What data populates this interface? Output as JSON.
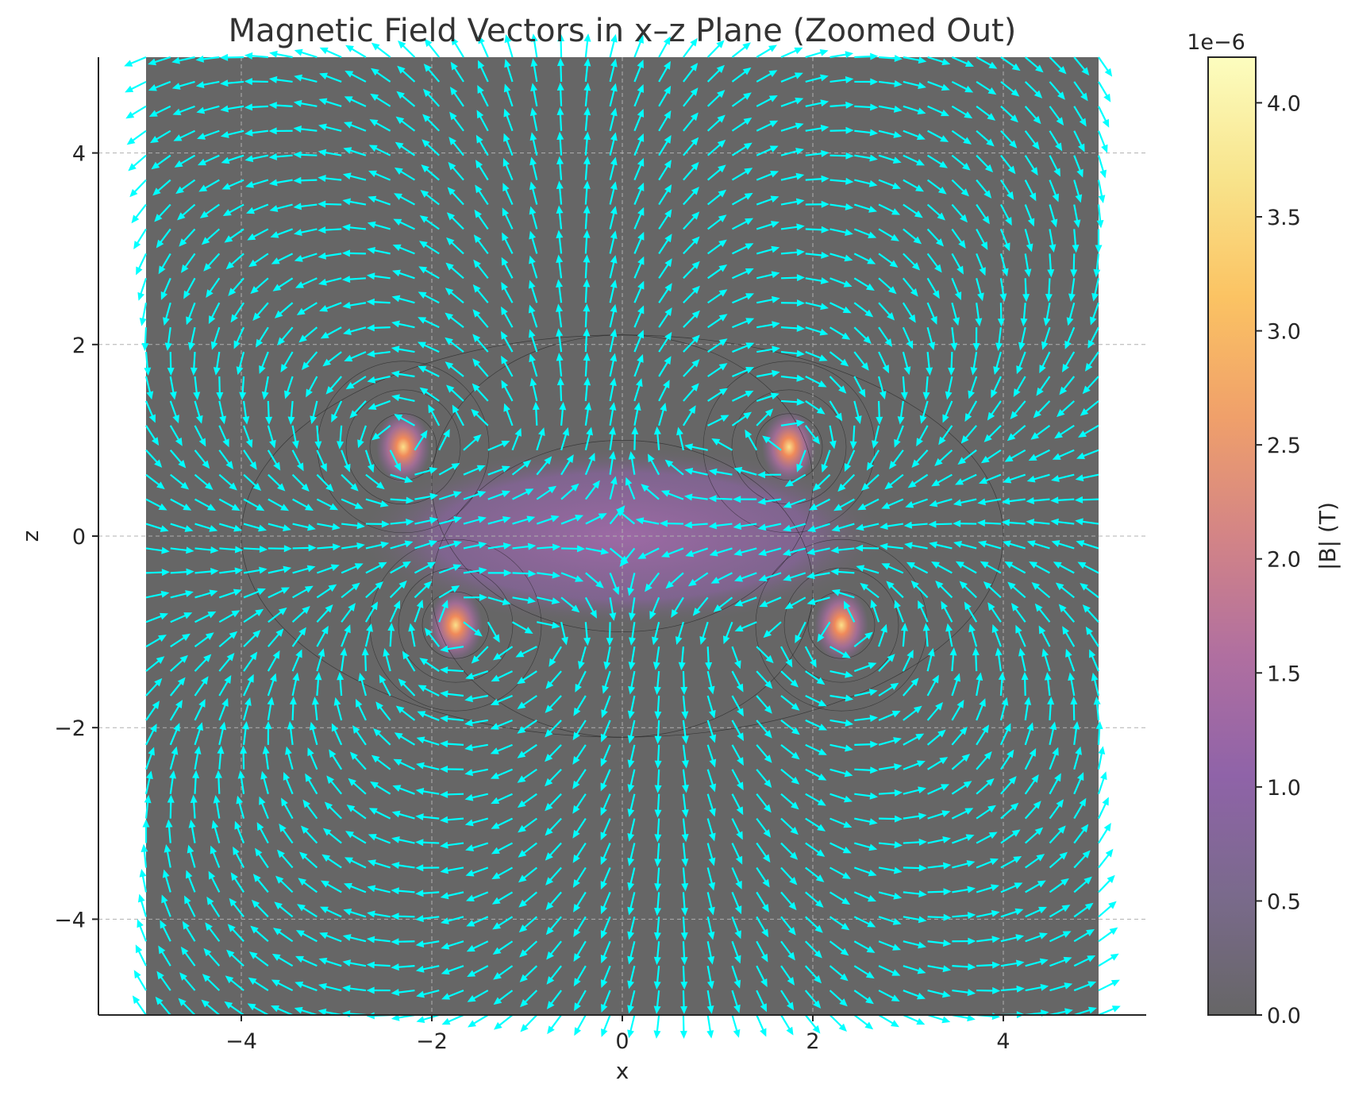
{
  "chart_data": {
    "type": "quiver",
    "title": "Magnetic Field Vectors in x–z Plane (Zoomed Out)",
    "xlabel": "x",
    "ylabel": "z",
    "xlim": [
      -5.5,
      5.5
    ],
    "ylim": [
      -5,
      5
    ],
    "x_ticks": [
      -4,
      -2,
      0,
      2,
      4
    ],
    "y_ticks": [
      -4,
      -2,
      0,
      2,
      4
    ],
    "x_tick_labels": [
      "−4",
      "−2",
      "0",
      "2",
      "4"
    ],
    "y_tick_labels": [
      "−4",
      "−2",
      "0",
      "2",
      "4"
    ],
    "grid": true,
    "field_domain": {
      "x": [
        -5,
        5
      ],
      "z": [
        -5,
        5
      ]
    },
    "vector_grid_points_per_axis": 40,
    "vector_color": "#00ffff",
    "background_color": "#666666",
    "colorbar": {
      "label": "|B| (T)",
      "scale_label": "1e−6",
      "range": [
        0,
        4.2
      ],
      "ticks": [
        0.0,
        0.5,
        1.0,
        1.5,
        2.0,
        2.5,
        3.0,
        3.5,
        4.0
      ],
      "tick_labels": [
        "0.0",
        "0.5",
        "1.0",
        "1.5",
        "2.0",
        "2.5",
        "3.0",
        "3.5",
        "4.0"
      ],
      "colors": [
        "#666666",
        "#7a6a8c",
        "#8f63a8",
        "#b06fa0",
        "#d38486",
        "#f0a06a",
        "#fbc363",
        "#f8e48c",
        "#fcfdbf"
      ]
    },
    "current_loops": [
      {
        "x": -2.3,
        "z": 0.93
      },
      {
        "x": 1.75,
        "z": 0.93
      },
      {
        "x": -1.75,
        "z": -0.93
      },
      {
        "x": 2.3,
        "z": -0.93
      }
    ]
  }
}
